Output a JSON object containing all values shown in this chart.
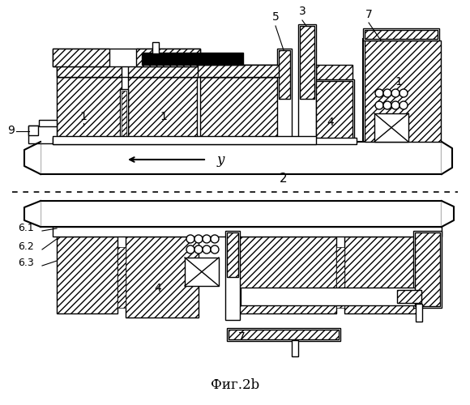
{
  "title": "Фиг.2b",
  "bg_color": "#ffffff",
  "hatch_color": "#000000",
  "line_color": "#000000",
  "label_color": "#000000",
  "figsize": [
    5.8,
    5.0
  ],
  "dpi": 100
}
